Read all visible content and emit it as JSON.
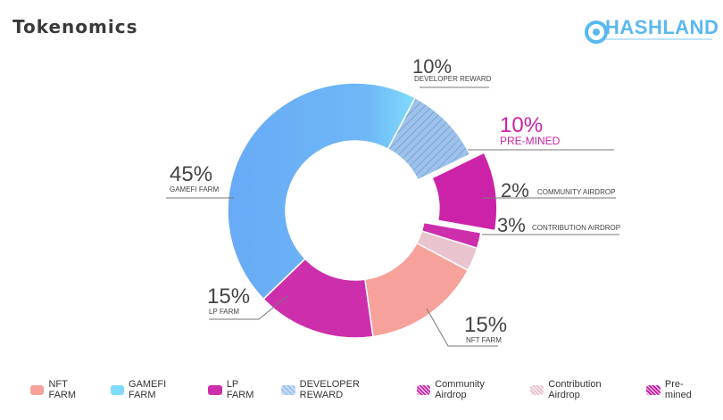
{
  "page": {
    "title": "Tokenomics"
  },
  "brand": {
    "logo_text": "HASHLAND"
  },
  "colors": {
    "nft": "#f6a29b",
    "gamefi_light": "#7fdcfb",
    "gamefi": "#68aaf6",
    "lp": "#cd2fac",
    "developer": "#9ec2ea",
    "premined": "#cc22a8",
    "community": "#cd2fac",
    "contribution": "#e9c4cf",
    "premined_label": "#cc22a8",
    "leader": "#777777"
  },
  "chart_data": {
    "type": "pie",
    "variant": "donut",
    "title": "Tokenomics",
    "slices": [
      {
        "label": "NFT FARM",
        "value": 15,
        "pct_text": "15%",
        "legend": "NFT FARM"
      },
      {
        "label": "LP FARM",
        "value": 15,
        "pct_text": "15%",
        "legend": "LP FARM"
      },
      {
        "label": "GAMEFI FARM",
        "value": 45,
        "pct_text": "45%",
        "legend": "GAMEFI FARM"
      },
      {
        "label": "DEVELOPER REWARD",
        "value": 10,
        "pct_text": "10%",
        "legend": "DEVELOPER REWARD"
      },
      {
        "label": "PRE-MINED",
        "value": 10,
        "pct_text": "10%",
        "legend": "Pre-mined"
      },
      {
        "label": "COMMUNITY AIRDROP",
        "value": 2,
        "pct_text": "2%",
        "legend": "Community Airdrop"
      },
      {
        "label": "CONTRIBUTION AIRDROP",
        "value": 3,
        "pct_text": "3%",
        "legend": "Contribution Airdrop"
      }
    ],
    "legend_order": [
      "NFT FARM",
      "GAMEFI FARM",
      "LP FARM",
      "DEVELOPER REWARD",
      "Community Airdrop",
      "Contribution Airdrop",
      "Pre-mined"
    ],
    "legend_placement": "bottom"
  }
}
